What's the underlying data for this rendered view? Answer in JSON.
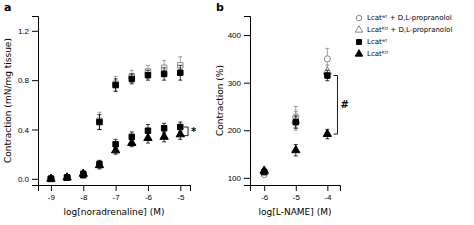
{
  "chart_data": [
    {
      "type": "scatter",
      "title": "a",
      "x_label": "log[noradrenaline] (M)",
      "y_label": "Contraction (mN/mg tissue)",
      "xlim": [
        -9.4,
        -4.7
      ],
      "ylim": [
        -0.05,
        1.32
      ],
      "xticks": [
        -9,
        -8,
        -7,
        -6,
        -5
      ],
      "yticks": [
        {
          "value": 0.0,
          "label": "0.0"
        },
        0.4,
        0.8,
        1.2
      ],
      "x": [
        -9,
        -8.5,
        -8,
        -7.5,
        -7,
        -6.5,
        -6,
        -5.5,
        -5
      ],
      "series": [
        {
          "color": "#888888",
          "marker": "open-square",
          "values": [
            0.0,
            0.01,
            0.03,
            0.47,
            0.77,
            0.83,
            0.87,
            0.9,
            0.92
          ],
          "errors": [
            0.005,
            0.005,
            0.015,
            0.07,
            0.06,
            0.05,
            0.05,
            0.06,
            0.07
          ]
        },
        {
          "color": "#000000",
          "marker": "square",
          "values": [
            0.0,
            0.01,
            0.03,
            0.46,
            0.76,
            0.81,
            0.84,
            0.85,
            0.86
          ],
          "errors": [
            0.005,
            0.005,
            0.015,
            0.06,
            0.05,
            0.04,
            0.04,
            0.05,
            0.06
          ]
        },
        {
          "color": "#000000",
          "marker": "square",
          "values": [
            0.0,
            0.01,
            0.04,
            0.12,
            0.28,
            0.34,
            0.39,
            0.41,
            0.42
          ],
          "errors": [
            0.005,
            0.005,
            0.015,
            0.03,
            0.04,
            0.04,
            0.05,
            0.04,
            0.04
          ]
        },
        {
          "color": "#000000",
          "marker": "triangle",
          "values": [
            0.0,
            0.01,
            0.04,
            0.11,
            0.23,
            0.29,
            0.33,
            0.34,
            0.36
          ],
          "errors": [
            0.005,
            0.005,
            0.015,
            0.03,
            0.03,
            0.03,
            0.04,
            0.04,
            0.04
          ]
        }
      ],
      "annotations": [
        {
          "text": "*",
          "x": -4.76,
          "y": [
            0.35,
            0.42
          ]
        }
      ]
    },
    {
      "type": "scatter",
      "title": "b",
      "x_label": "log[L-NAME] (M)",
      "y_label": "Contraction (%)",
      "xlim": [
        -6.45,
        -3.6
      ],
      "ylim": [
        85,
        440
      ],
      "xticks": [
        -6,
        -5,
        -4
      ],
      "yticks": [
        100,
        200,
        300,
        400
      ],
      "x": [
        -6,
        -5,
        -4
      ],
      "legend": "right",
      "series": [
        {
          "name": "Lcatʷᵗ + D,L-propranolol",
          "color": "#888888",
          "marker": "open-circle",
          "values": [
            107,
            228,
            350
          ],
          "errors": [
            4,
            22,
            22
          ]
        },
        {
          "name": "Lcatᴷᴼ + D,L-propranolol",
          "color": "#888888",
          "marker": "open-triangle",
          "values": [
            113,
            220,
            323
          ],
          "errors": [
            4,
            20,
            14
          ]
        },
        {
          "name": "Lcatʷᵗ",
          "color": "#000000",
          "marker": "square",
          "values": [
            112,
            217,
            315
          ],
          "errors": [
            4,
            13,
            11
          ]
        },
        {
          "name": "Lcatᴷᴼ",
          "color": "#000000",
          "marker": "triangle",
          "values": [
            115,
            158,
            192
          ],
          "errors": [
            4,
            12,
            10
          ]
        }
      ],
      "annotations": [
        {
          "text": "#",
          "x": -3.68,
          "y": [
            192,
            315
          ]
        }
      ]
    }
  ]
}
